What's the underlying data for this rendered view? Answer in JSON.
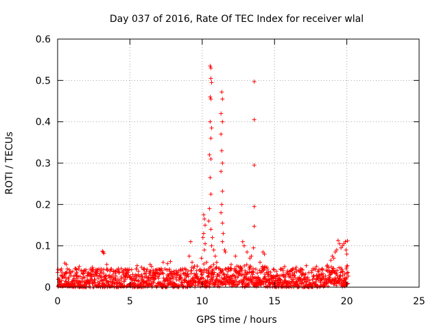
{
  "chart_data": {
    "type": "scatter",
    "title": "Day 037 of 2016, Rate Of TEC Index for receiver wlal",
    "xlabel": "GPS time / hours",
    "ylabel": "ROTI / TECUs",
    "xlim": [
      0,
      25
    ],
    "ylim": [
      0,
      0.6
    ],
    "xticks": [
      0,
      5,
      10,
      15,
      20,
      25
    ],
    "yticks": [
      0,
      0.1,
      0.2,
      0.3,
      0.4,
      0.5,
      0.6
    ],
    "xtick_labels": [
      "0",
      "5",
      "10",
      "15",
      "20",
      "25"
    ],
    "ytick_labels": [
      "0",
      "0.1",
      "0.2",
      "0.3",
      "0.4",
      "0.5",
      "0.6"
    ],
    "grid": true,
    "marker": "+",
    "color": "#ff0000",
    "series": [
      {
        "name": "ROTI",
        "points": [
          [
            10.55,
            0.535
          ],
          [
            10.6,
            0.53
          ],
          [
            10.6,
            0.505
          ],
          [
            10.65,
            0.495
          ],
          [
            10.55,
            0.46
          ],
          [
            10.6,
            0.455
          ],
          [
            10.55,
            0.4
          ],
          [
            10.65,
            0.385
          ],
          [
            10.6,
            0.36
          ],
          [
            10.5,
            0.32
          ],
          [
            10.6,
            0.31
          ],
          [
            10.55,
            0.265
          ],
          [
            10.6,
            0.225
          ],
          [
            10.5,
            0.19
          ],
          [
            10.45,
            0.16
          ],
          [
            10.6,
            0.14
          ],
          [
            10.7,
            0.12
          ],
          [
            10.65,
            0.1
          ],
          [
            11.35,
            0.472
          ],
          [
            11.4,
            0.455
          ],
          [
            11.3,
            0.42
          ],
          [
            11.4,
            0.4
          ],
          [
            11.3,
            0.37
          ],
          [
            11.35,
            0.33
          ],
          [
            11.4,
            0.3
          ],
          [
            11.3,
            0.28
          ],
          [
            11.4,
            0.232
          ],
          [
            11.35,
            0.2
          ],
          [
            11.3,
            0.18
          ],
          [
            11.4,
            0.155
          ],
          [
            11.45,
            0.13
          ],
          [
            11.4,
            0.11
          ],
          [
            11.55,
            0.09
          ],
          [
            11.6,
            0.085
          ],
          [
            13.6,
            0.497
          ],
          [
            13.6,
            0.405
          ],
          [
            13.6,
            0.295
          ],
          [
            13.6,
            0.195
          ],
          [
            13.6,
            0.147
          ],
          [
            13.55,
            0.095
          ],
          [
            10.1,
            0.175
          ],
          [
            10.15,
            0.165
          ],
          [
            10.2,
            0.15
          ],
          [
            10.1,
            0.13
          ],
          [
            10.05,
            0.12
          ],
          [
            10.2,
            0.105
          ],
          [
            10.15,
            0.09
          ],
          [
            9.95,
            0.07
          ],
          [
            10.3,
            0.06
          ],
          [
            9.2,
            0.11
          ],
          [
            9.1,
            0.075
          ],
          [
            9.3,
            0.06
          ],
          [
            10.8,
            0.09
          ],
          [
            10.9,
            0.075
          ],
          [
            11.0,
            0.06
          ],
          [
            12.0,
            0.055
          ],
          [
            12.3,
            0.075
          ],
          [
            12.8,
            0.11
          ],
          [
            12.9,
            0.1
          ],
          [
            13.1,
            0.085
          ],
          [
            13.3,
            0.07
          ],
          [
            13.4,
            0.075
          ],
          [
            14.0,
            0.06
          ],
          [
            14.2,
            0.085
          ],
          [
            14.3,
            0.08
          ],
          [
            3.1,
            0.087
          ],
          [
            3.2,
            0.082
          ],
          [
            3.15,
            0.085
          ],
          [
            0.5,
            0.058
          ],
          [
            0.6,
            0.055
          ],
          [
            7.3,
            0.06
          ],
          [
            7.6,
            0.057
          ],
          [
            7.8,
            0.062
          ],
          [
            8.2,
            0.04
          ],
          [
            5.5,
            0.052
          ],
          [
            5.8,
            0.048
          ],
          [
            6.4,
            0.055
          ],
          [
            6.5,
            0.05
          ],
          [
            1.2,
            0.045
          ],
          [
            1.5,
            0.05
          ],
          [
            2.4,
            0.048
          ],
          [
            2.7,
            0.042
          ],
          [
            3.4,
            0.055
          ],
          [
            4.2,
            0.045
          ],
          [
            4.8,
            0.04
          ],
          [
            15.7,
            0.05
          ],
          [
            16.5,
            0.048
          ],
          [
            17.2,
            0.052
          ],
          [
            17.9,
            0.05
          ],
          [
            18.3,
            0.045
          ],
          [
            19.4,
            0.113
          ],
          [
            19.5,
            0.105
          ],
          [
            19.6,
            0.095
          ],
          [
            19.3,
            0.09
          ],
          [
            19.2,
            0.085
          ],
          [
            19.7,
            0.1
          ],
          [
            19.8,
            0.105
          ],
          [
            19.9,
            0.11
          ],
          [
            20.05,
            0.112
          ],
          [
            19.0,
            0.075
          ],
          [
            18.9,
            0.065
          ],
          [
            19.1,
            0.07
          ],
          [
            19.95,
            0.09
          ],
          [
            20.0,
            0.08
          ]
        ]
      }
    ],
    "dense_band": {
      "description": "dense scatter of ROTI values between 0 and about 0.05 TECU across the time range",
      "x_range": [
        0,
        20.1
      ],
      "y_range": [
        0.0,
        0.045
      ]
    }
  }
}
